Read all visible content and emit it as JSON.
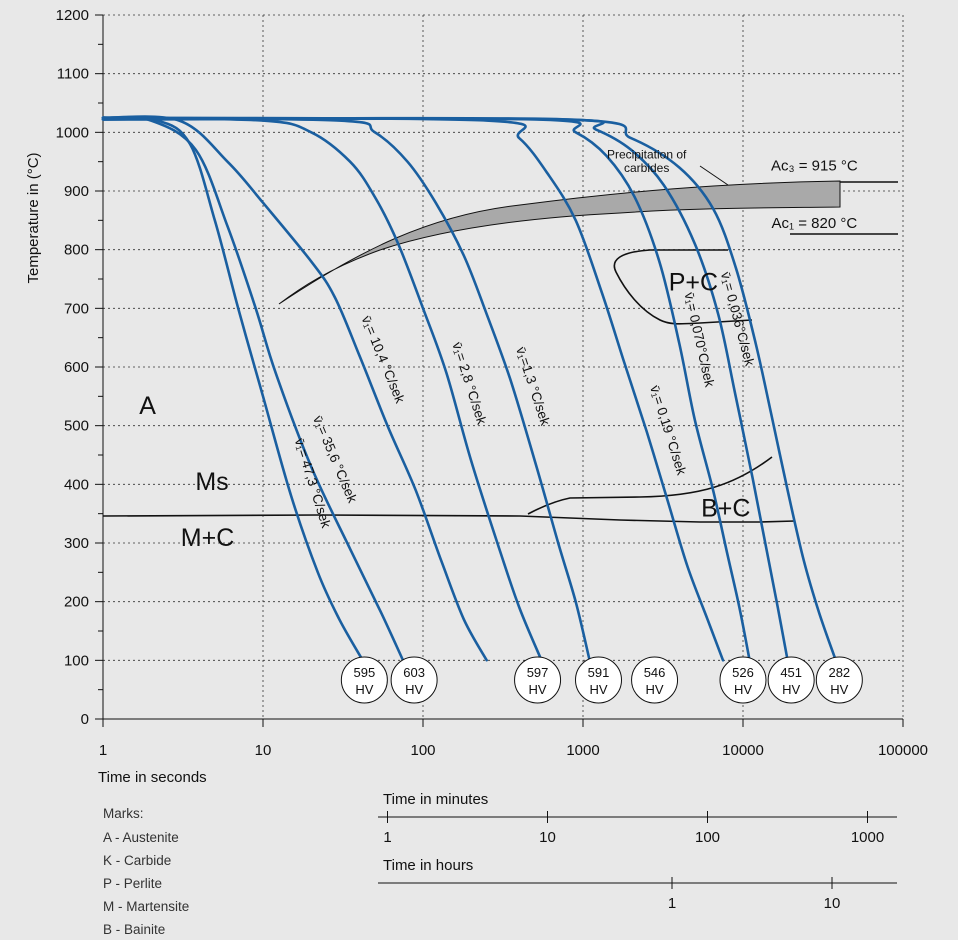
{
  "chart_data": {
    "type": "line",
    "title": "",
    "xlabel": "Time in seconds",
    "ylabel": "Temperature in (°C)",
    "x_scale": "log",
    "xlim": [
      1,
      100000
    ],
    "ylim": [
      0,
      1200
    ],
    "grid": true,
    "x_ticks": [
      "1",
      "10",
      "100",
      "1000",
      "10000",
      "100000"
    ],
    "y_ticks": [
      "0",
      "100",
      "200",
      "300",
      "400",
      "500",
      "600",
      "700",
      "800",
      "900",
      "1000",
      "1100",
      "1200"
    ],
    "series": [
      {
        "name": "v̄₁= 47,3 °C/sek",
        "hardness": "595",
        "color": "#1a5fa0",
        "x": [
          1,
          2.2,
          3.5,
          5,
          7,
          10,
          15,
          22,
          30,
          42
        ],
        "y": [
          1025,
          1020,
          980,
          850,
          700,
          550,
          380,
          250,
          170,
          100
        ]
      },
      {
        "name": "v̄₁= 35,6 °C/sek",
        "hardness": "603",
        "color": "#1a5fa0",
        "x": [
          1,
          2,
          3.8,
          6,
          9,
          12,
          20,
          35,
          55,
          75
        ],
        "y": [
          1025,
          1020,
          970,
          840,
          700,
          590,
          430,
          290,
          180,
          100
        ]
      },
      {
        "name": "v̄₁= 10,4 °C/sek",
        "hardness": "603",
        "color": "#1a5fa0",
        "x": [
          1,
          3,
          6,
          10,
          20,
          28,
          40,
          60,
          90,
          130,
          180,
          250
        ],
        "y": [
          1025,
          1020,
          950,
          880,
          780,
          720,
          620,
          500,
          390,
          270,
          170,
          100
        ]
      },
      {
        "name": "v̄₁= 2,8 °C/sek",
        "hardness": "597",
        "color": "#1a5fa0",
        "x": [
          1,
          10,
          20,
          35,
          50,
          70,
          100,
          140,
          200,
          300,
          400,
          550
        ],
        "y": [
          1025,
          1020,
          1000,
          950,
          890,
          810,
          700,
          590,
          440,
          290,
          190,
          100
        ]
      },
      {
        "name": "v̄₁=1,3 °C/sek",
        "hardness": "591",
        "color": "#1a5fa0",
        "x": [
          1,
          30,
          50,
          80,
          120,
          180,
          250,
          350,
          500,
          700,
          900,
          1100
        ],
        "y": [
          1025,
          1020,
          1000,
          950,
          880,
          790,
          690,
          580,
          440,
          300,
          200,
          100
        ]
      },
      {
        "name": "v̄₁= 0,19 °C/sek",
        "hardness": "546",
        "color": "#1a5fa0",
        "x": [
          1,
          250,
          400,
          600,
          900,
          1300,
          1800,
          2500,
          3400,
          4500,
          6000,
          7500
        ],
        "y": [
          1025,
          1020,
          990,
          930,
          850,
          730,
          610,
          490,
          370,
          260,
          170,
          100
        ]
      },
      {
        "name": "v̄₁= 0,070°C/sek",
        "hardness": "526",
        "color": "#1a5fa0",
        "x": [
          1,
          500,
          900,
          1400,
          2100,
          3000,
          4000,
          5000,
          6500,
          8000,
          9500,
          11000
        ],
        "y": [
          1022,
          1022,
          1000,
          960,
          890,
          780,
          640,
          510,
          390,
          280,
          190,
          100
        ]
      },
      {
        "name": "v̄₁= 0,036°C/sek",
        "hardness": "451",
        "color": "#1a5fa0",
        "x": [
          1,
          700,
          1200,
          2000,
          3200,
          5000,
          7000,
          9000,
          11500,
          14000,
          16500,
          19000
        ],
        "y": [
          1022,
          1022,
          1005,
          970,
          910,
          810,
          690,
          550,
          410,
          290,
          190,
          100
        ]
      },
      {
        "name": "",
        "hardness": "282",
        "color": "#1a5fa0",
        "x": [
          1,
          800,
          2000,
          4000,
          6500,
          9000,
          12000,
          15000,
          19000,
          24000,
          30000,
          38000
        ],
        "y": [
          1022,
          1022,
          990,
          940,
          870,
          770,
          640,
          520,
          390,
          270,
          180,
          100
        ]
      }
    ],
    "hardness_labels": [
      {
        "value": "595",
        "unit": "HV",
        "x": 43
      },
      {
        "value": "603",
        "unit": "HV",
        "x": 88
      },
      {
        "value": "597",
        "unit": "HV",
        "x": 520
      },
      {
        "value": "591",
        "unit": "HV",
        "x": 1250
      },
      {
        "value": "546",
        "unit": "HV",
        "x": 2800
      },
      {
        "value": "526",
        "unit": "HV",
        "x": 10000
      },
      {
        "value": "451",
        "unit": "HV",
        "x": 20000
      },
      {
        "value": "282",
        "unit": "HV",
        "x": 40000
      }
    ],
    "region_labels": [
      {
        "text": "A",
        "x": 1.9,
        "y": 520
      },
      {
        "text": "Ms",
        "x": 4.8,
        "y": 390
      },
      {
        "text": "M+C",
        "x": 4.5,
        "y": 295
      },
      {
        "text": "P+C",
        "x": 4900,
        "y": 730
      },
      {
        "text": "B+C",
        "x": 7800,
        "y": 345
      }
    ],
    "annotations": [
      {
        "text": "Precipitation of",
        "x": 2500,
        "y": 955
      },
      {
        "text": "carbides",
        "x": 2500,
        "y": 932
      },
      {
        "text": "Ac₃ = 915 °C",
        "x": 40000,
        "y": 935
      },
      {
        "text": "Ac₁ = 820 °C",
        "x": 40000,
        "y": 837
      }
    ],
    "secondary_axes": [
      {
        "label": "Time in minutes",
        "ticks": [
          "1",
          "10",
          "100",
          "1000"
        ]
      },
      {
        "label": "Time in hours",
        "ticks": [
          "1",
          "10"
        ]
      }
    ],
    "legend": {
      "heading": "Marks:",
      "entries": [
        "A - Austenite",
        "K - Carbide",
        "P - Perlite",
        "M - Martensite",
        "B - Bainite"
      ]
    }
  }
}
